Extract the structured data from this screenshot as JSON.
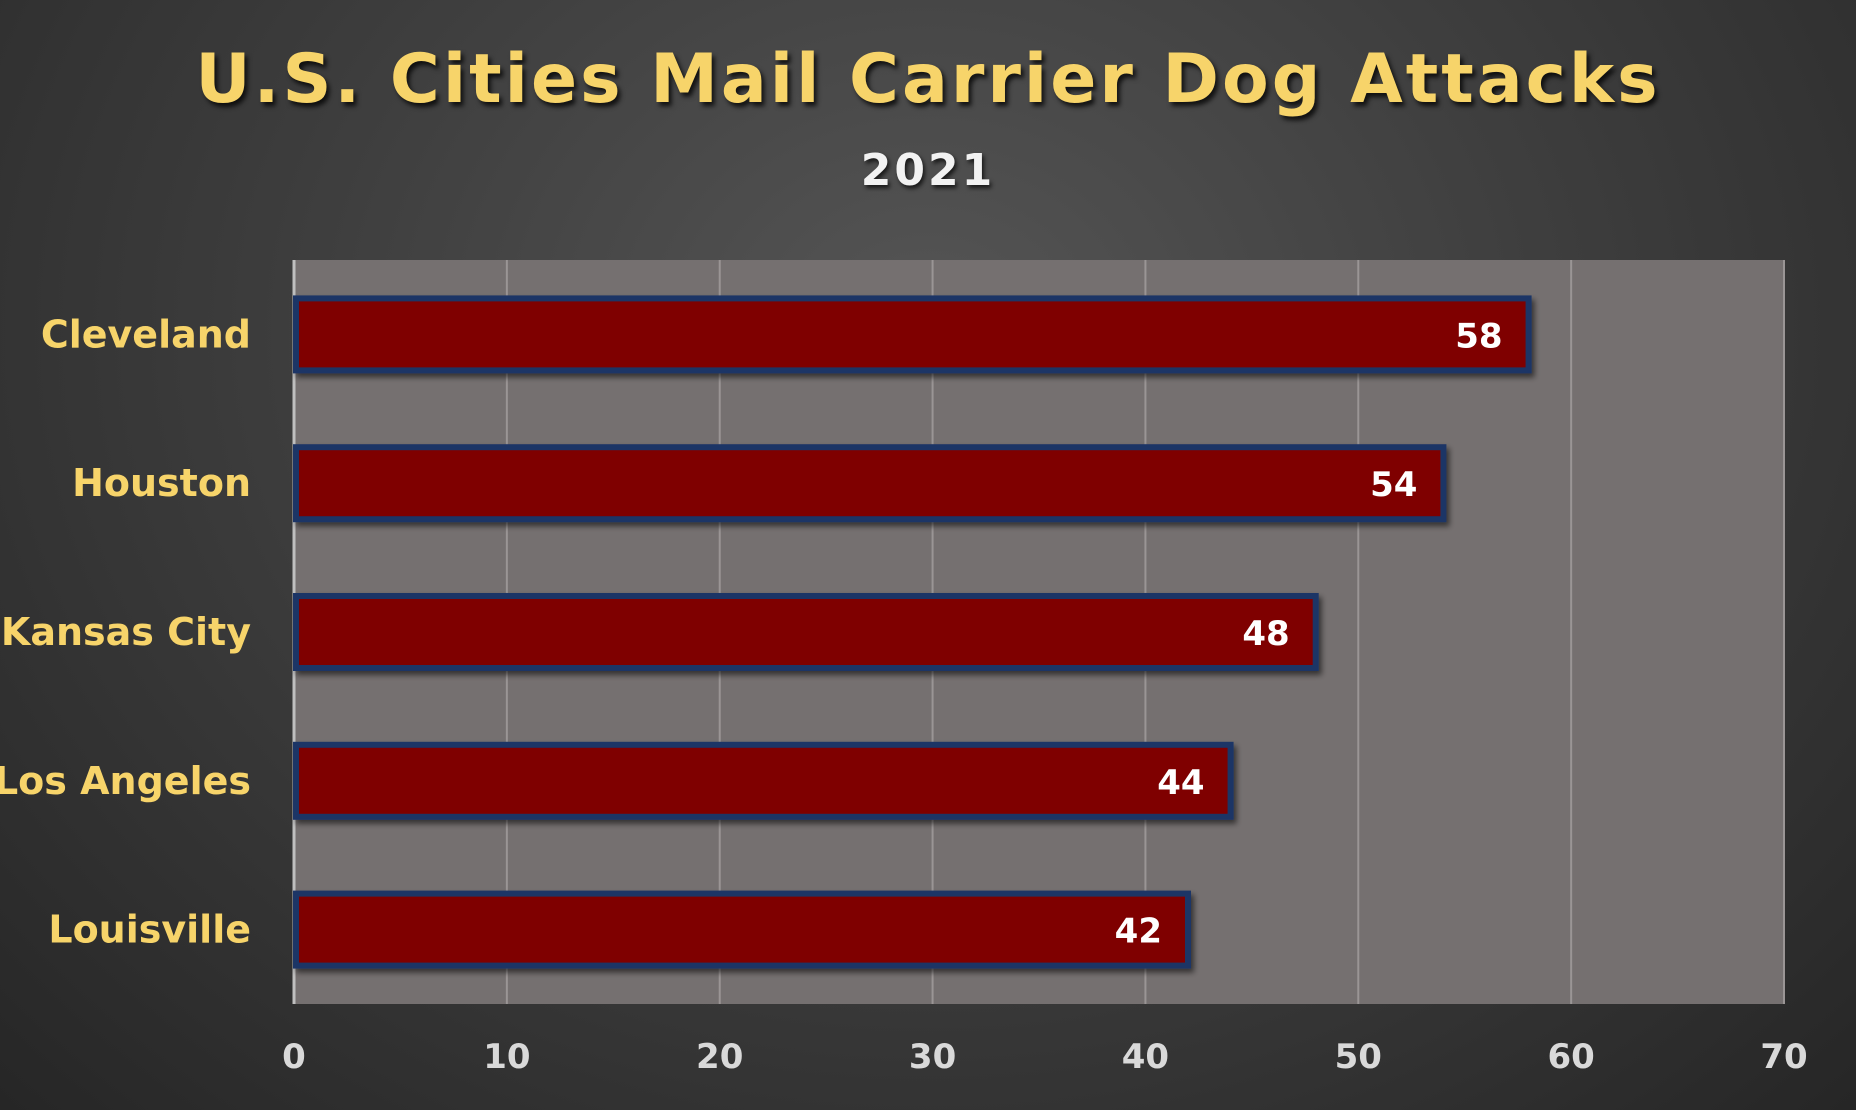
{
  "chart_data": {
    "type": "bar",
    "orientation": "horizontal",
    "title": "U.S. Cities Mail Carrier Dog Attacks",
    "subtitle": "2021",
    "categories": [
      "Cleveland",
      "Houston",
      "Kansas City",
      "Los Angeles",
      "Louisville"
    ],
    "values": [
      58,
      54,
      48,
      44,
      42
    ],
    "xlim": [
      0,
      70
    ],
    "xticks": [
      0,
      10,
      20,
      30,
      40,
      50,
      60,
      70
    ],
    "grid": true,
    "legend": "none",
    "colors": {
      "bar_fill": "#7f0000",
      "bar_border": "#1f3566",
      "plot_background": "#757070",
      "gridline": "#9a9595",
      "category_label": "#f7d46a",
      "tick_label": "#d9d9d9",
      "data_label": "#ffffff"
    }
  }
}
